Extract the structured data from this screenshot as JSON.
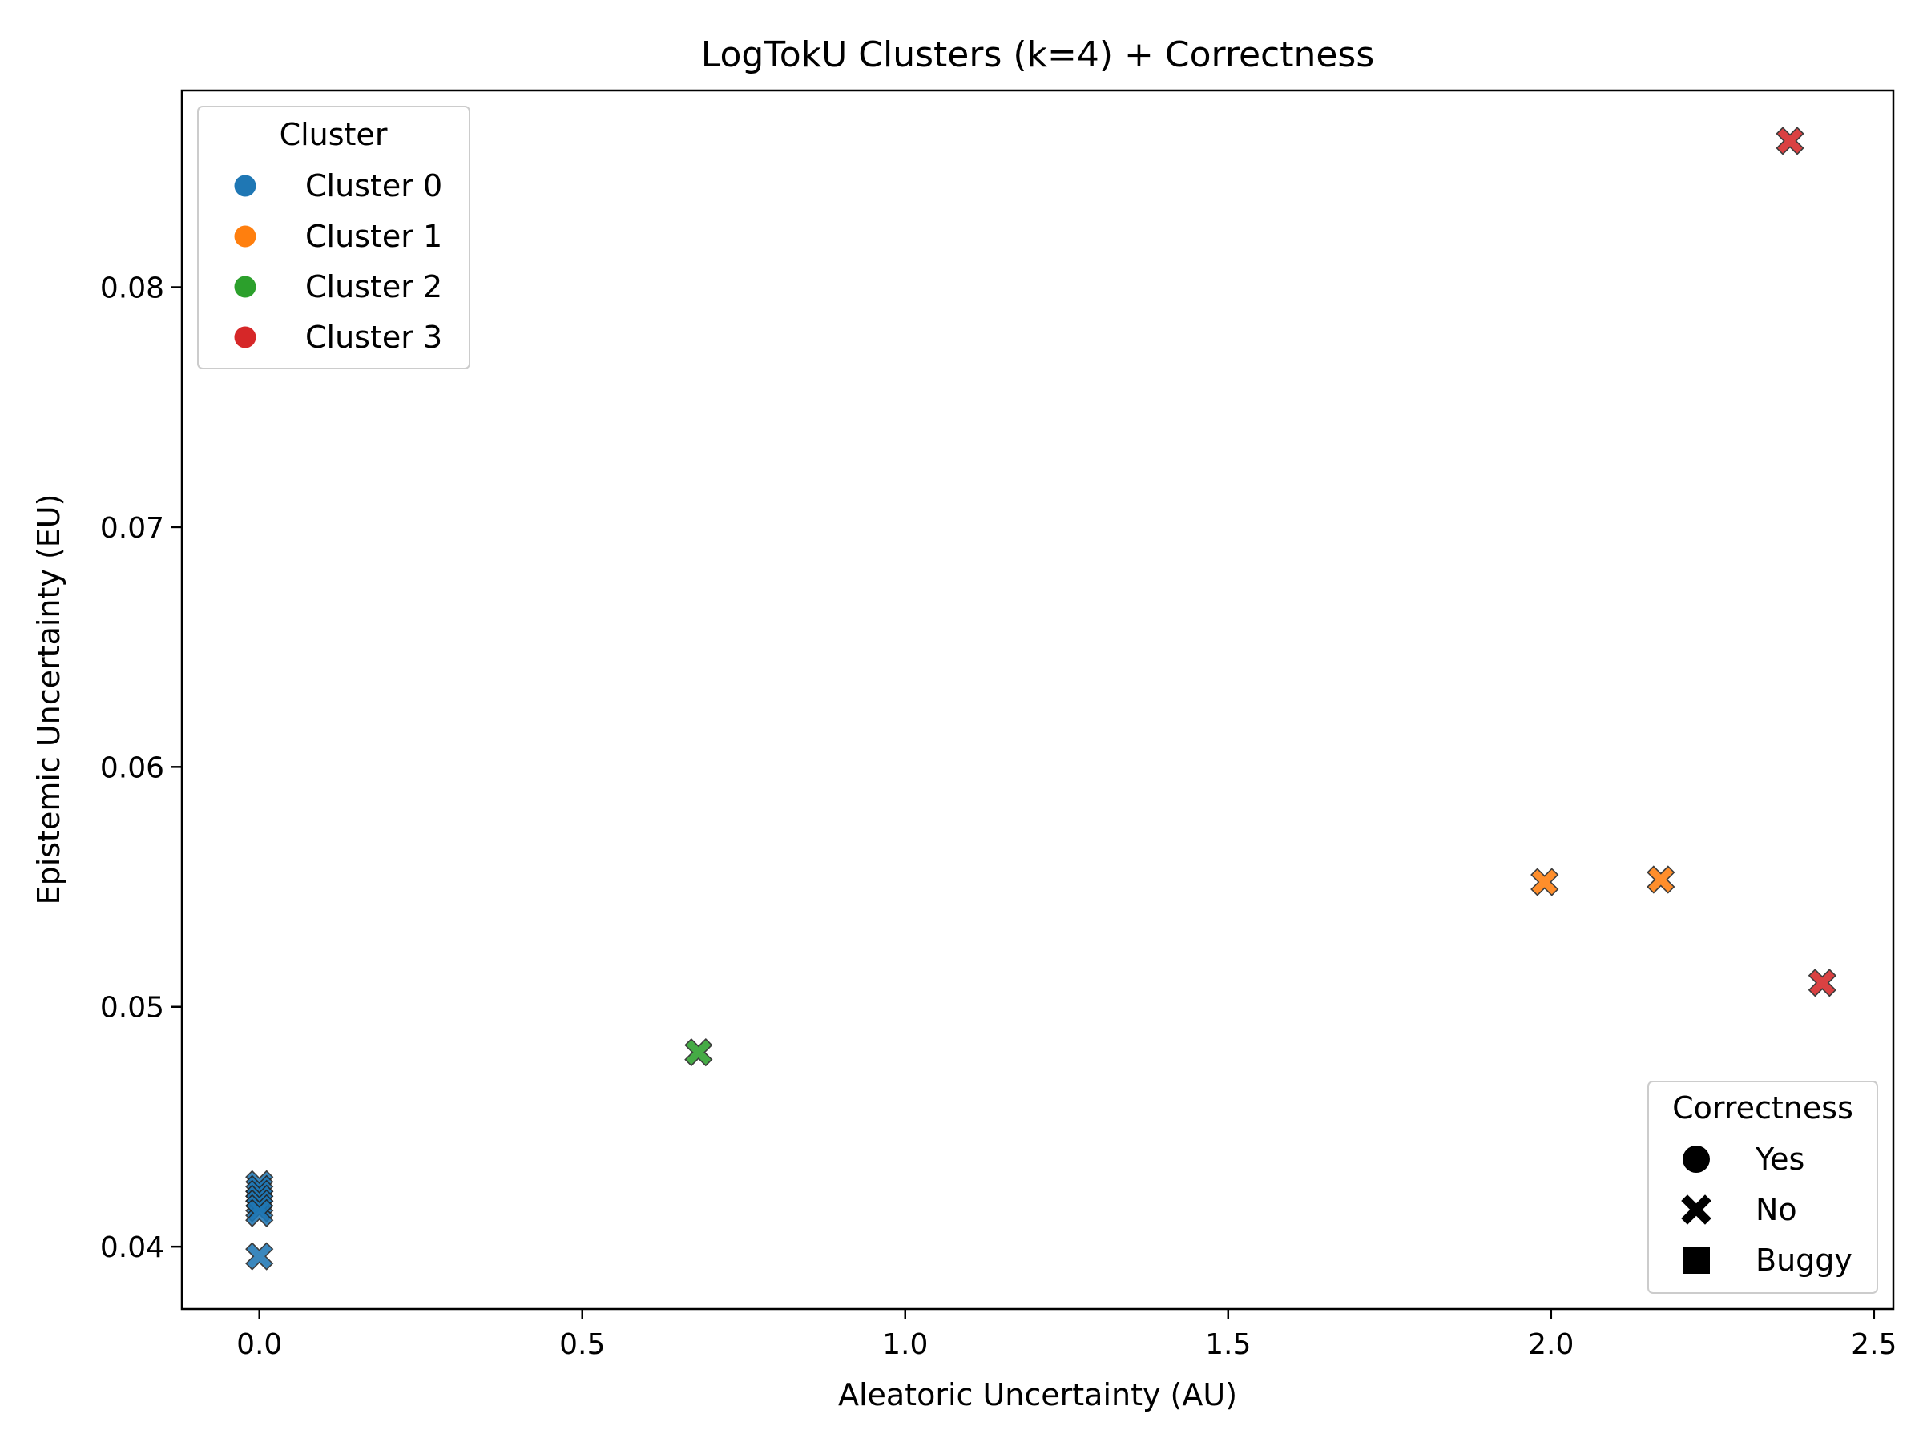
{
  "chart_data": {
    "type": "scatter",
    "title": "LogTokU Clusters (k=4) + Correctness",
    "xlabel": "Aleatoric Uncertainty (AU)",
    "ylabel": "Epistemic Uncertainty (EU)",
    "xlim": [
      -0.12,
      2.53
    ],
    "ylim": [
      0.0374,
      0.0882
    ],
    "xticks": [
      {
        "value": 0.0,
        "label": "0.0"
      },
      {
        "value": 0.5,
        "label": "0.5"
      },
      {
        "value": 1.0,
        "label": "1.0"
      },
      {
        "value": 1.5,
        "label": "1.5"
      },
      {
        "value": 2.0,
        "label": "2.0"
      },
      {
        "value": 2.5,
        "label": "2.5"
      }
    ],
    "yticks": [
      {
        "value": 0.04,
        "label": "0.04"
      },
      {
        "value": 0.05,
        "label": "0.05"
      },
      {
        "value": 0.06,
        "label": "0.06"
      },
      {
        "value": 0.07,
        "label": "0.07"
      },
      {
        "value": 0.08,
        "label": "0.08"
      }
    ],
    "grid": false,
    "cluster_legend": {
      "title": "Cluster",
      "placement": "top-left",
      "entries": [
        {
          "label": "Cluster 0",
          "color": "#1f77b4"
        },
        {
          "label": "Cluster 1",
          "color": "#ff7f0e"
        },
        {
          "label": "Cluster 2",
          "color": "#2ca02c"
        },
        {
          "label": "Cluster 3",
          "color": "#d62728"
        }
      ]
    },
    "correctness_legend": {
      "title": "Correctness",
      "placement": "bottom-right",
      "entries": [
        {
          "label": "Yes",
          "marker": "circle"
        },
        {
          "label": "No",
          "marker": "x"
        },
        {
          "label": "Buggy",
          "marker": "square"
        }
      ]
    },
    "points": [
      {
        "x": 0.0,
        "y": 0.0426,
        "cluster": 0,
        "correctness": "No"
      },
      {
        "x": 0.0,
        "y": 0.0424,
        "cluster": 0,
        "correctness": "No"
      },
      {
        "x": 0.0,
        "y": 0.0422,
        "cluster": 0,
        "correctness": "No"
      },
      {
        "x": 0.0,
        "y": 0.042,
        "cluster": 0,
        "correctness": "No"
      },
      {
        "x": 0.0,
        "y": 0.0418,
        "cluster": 0,
        "correctness": "No"
      },
      {
        "x": 0.0,
        "y": 0.0416,
        "cluster": 0,
        "correctness": "No"
      },
      {
        "x": 0.0,
        "y": 0.0414,
        "cluster": 0,
        "correctness": "No"
      },
      {
        "x": 0.0,
        "y": 0.0396,
        "cluster": 0,
        "correctness": "No"
      },
      {
        "x": 0.68,
        "y": 0.0481,
        "cluster": 2,
        "correctness": "No"
      },
      {
        "x": 1.99,
        "y": 0.0552,
        "cluster": 1,
        "correctness": "No"
      },
      {
        "x": 2.17,
        "y": 0.0553,
        "cluster": 1,
        "correctness": "No"
      },
      {
        "x": 2.37,
        "y": 0.0861,
        "cluster": 3,
        "correctness": "No"
      },
      {
        "x": 2.42,
        "y": 0.051,
        "cluster": 3,
        "correctness": "No"
      }
    ]
  }
}
